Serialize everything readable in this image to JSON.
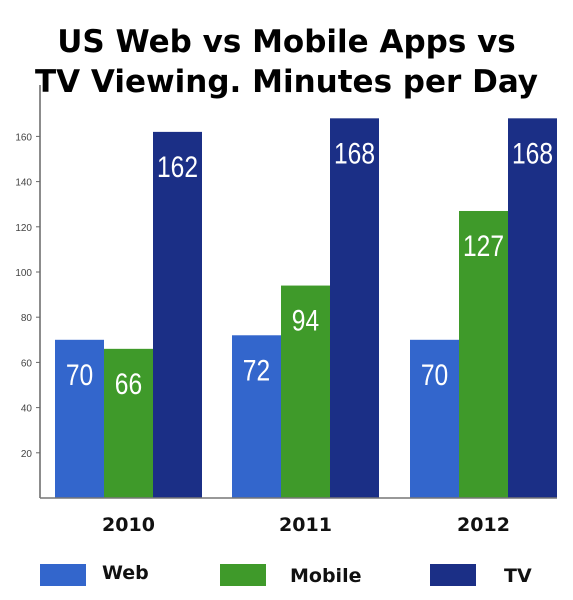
{
  "chart_data": {
    "type": "bar",
    "title_lines": [
      "US Web vs Mobile Apps vs",
      "TV Viewing. Minutes per Day"
    ],
    "categories": [
      "2010",
      "2011",
      "2012"
    ],
    "series": [
      {
        "name": "Web",
        "color": "#3366cc",
        "values": [
          70,
          72,
          70
        ]
      },
      {
        "name": "Mobile",
        "color": "#3f9a2a",
        "values": [
          66,
          94,
          127
        ]
      },
      {
        "name": "TV",
        "color": "#1b2f86",
        "values": [
          162,
          168,
          168
        ]
      }
    ],
    "yticks": [
      20,
      40,
      60,
      80,
      100,
      120,
      140,
      160
    ],
    "ylim": [
      0,
      168
    ],
    "grid": false,
    "legend_position": "bottom"
  }
}
